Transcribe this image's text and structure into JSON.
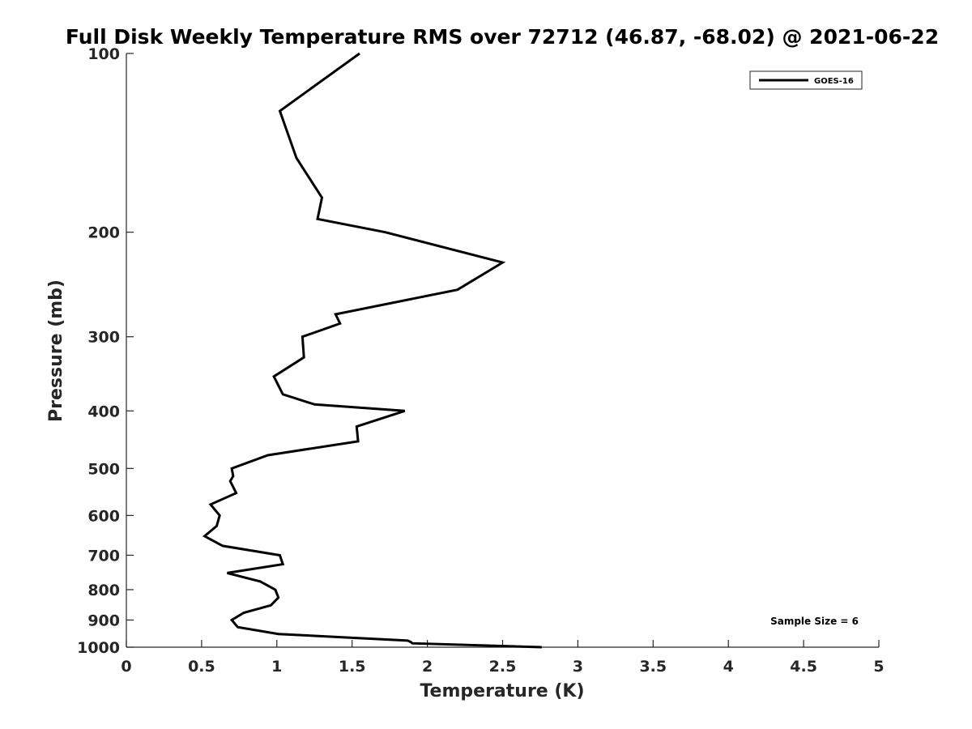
{
  "chart_data": {
    "type": "line",
    "title": "Full Disk Weekly Temperature RMS over 72712 (46.87, -68.02) @ 2021-06-22",
    "xlabel": "Temperature (K)",
    "ylabel": "Pressure (mb)",
    "xlim": [
      0,
      5
    ],
    "ylim": [
      100,
      1000
    ],
    "y_scale": "log",
    "y_reversed": true,
    "x_ticks": [
      "0",
      "0.5",
      "1",
      "1.5",
      "2",
      "2.5",
      "3",
      "3.5",
      "4",
      "4.5",
      "5"
    ],
    "y_ticks": [
      "100",
      "200",
      "300",
      "400",
      "500",
      "600",
      "700",
      "800",
      "900",
      "1000"
    ],
    "grid": false,
    "legend_position": "top-right",
    "annotation": "Sample Size = 6",
    "series": [
      {
        "name": "GOES-16",
        "color": "#000000",
        "points": [
          [
            1.55,
            100
          ],
          [
            1.02,
            125
          ],
          [
            1.13,
            150
          ],
          [
            1.3,
            175
          ],
          [
            1.27,
            190
          ],
          [
            1.72,
            200
          ],
          [
            2.5,
            225
          ],
          [
            2.2,
            250
          ],
          [
            1.39,
            275
          ],
          [
            1.42,
            285
          ],
          [
            1.17,
            300
          ],
          [
            1.18,
            325
          ],
          [
            0.98,
            350
          ],
          [
            1.04,
            375
          ],
          [
            1.25,
            390
          ],
          [
            1.85,
            400
          ],
          [
            1.53,
            425
          ],
          [
            1.54,
            450
          ],
          [
            0.94,
            475
          ],
          [
            0.7,
            500
          ],
          [
            0.71,
            515
          ],
          [
            0.69,
            525
          ],
          [
            0.73,
            550
          ],
          [
            0.56,
            575
          ],
          [
            0.62,
            600
          ],
          [
            0.6,
            625
          ],
          [
            0.52,
            650
          ],
          [
            0.64,
            675
          ],
          [
            1.02,
            700
          ],
          [
            1.04,
            725
          ],
          [
            0.67,
            750
          ],
          [
            0.89,
            775
          ],
          [
            0.99,
            800
          ],
          [
            1.01,
            825
          ],
          [
            0.96,
            850
          ],
          [
            0.78,
            875
          ],
          [
            0.7,
            900
          ],
          [
            0.74,
            925
          ],
          [
            1.01,
            950
          ],
          [
            1.87,
            975
          ],
          [
            1.89,
            980
          ],
          [
            1.9,
            985
          ],
          [
            2.76,
            1000
          ]
        ]
      }
    ]
  }
}
